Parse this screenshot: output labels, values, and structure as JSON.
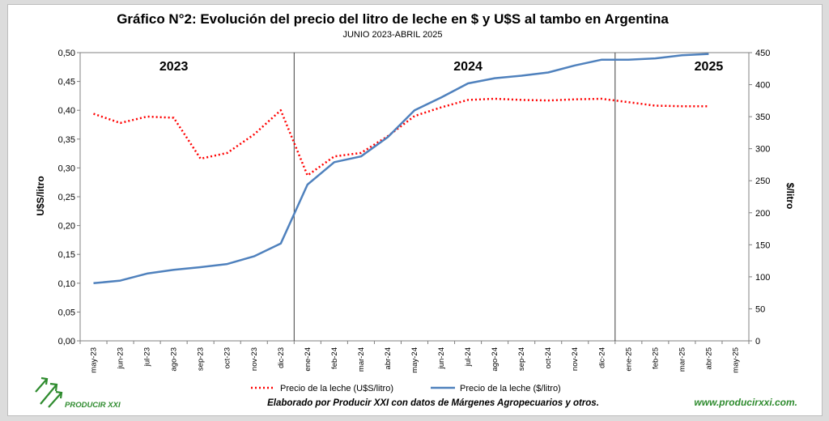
{
  "chart_data": {
    "type": "line",
    "title": "Gráfico N°2: Evolución del precio del litro de leche en $ y U$S al tambo en Argentina",
    "subtitle": "JUNIO 2023-ABRIL 2025",
    "categories": [
      "may-23",
      "jun-23",
      "jul-23",
      "ago-23",
      "sep-23",
      "oct-23",
      "nov-23",
      "dic-23",
      "ene-24",
      "feb-24",
      "mar-24",
      "abr-24",
      "may-24",
      "jun-24",
      "jul-24",
      "ago-24",
      "sep-24",
      "oct-24",
      "nov-24",
      "dic-24",
      "ene-25",
      "feb-25",
      "mar-25",
      "abr-25",
      "may-25"
    ],
    "y_left": {
      "label": "U$S/litro",
      "ylim": [
        0,
        0.5
      ],
      "ticks": [
        "0,00",
        "0,05",
        "0,10",
        "0,15",
        "0,20",
        "0,25",
        "0,30",
        "0,35",
        "0,40",
        "0,45",
        "0,50"
      ]
    },
    "y_right": {
      "label": "$/litro",
      "ylim": [
        0,
        450
      ],
      "ticks": [
        "0",
        "50",
        "100",
        "150",
        "200",
        "250",
        "300",
        "350",
        "400",
        "450"
      ]
    },
    "series": [
      {
        "name": "Precio de la leche (U$S/litro)",
        "axis": "left",
        "style": "dotted",
        "color": "#ff0000",
        "values": [
          0.394,
          0.378,
          0.389,
          0.387,
          0.316,
          0.326,
          0.358,
          0.4,
          0.287,
          0.32,
          0.326,
          0.355,
          0.39,
          0.405,
          0.418,
          0.42,
          0.418,
          0.417,
          0.419,
          0.42,
          0.414,
          0.408,
          0.407,
          0.407,
          null
        ]
      },
      {
        "name": "Precio de la leche ($/litro)",
        "axis": "right",
        "style": "solid",
        "color": "#4f81bd",
        "values": [
          90,
          94,
          105,
          111,
          115,
          120,
          132,
          152,
          244,
          279,
          288,
          318,
          360,
          380,
          402,
          410,
          414,
          419,
          430,
          439,
          439,
          441,
          446,
          448,
          null
        ]
      }
    ],
    "year_markers": [
      {
        "label": "2023",
        "at_category": 3
      },
      {
        "label": "2024",
        "at_category": 14
      },
      {
        "label": "2025",
        "at_category": 23
      }
    ],
    "dividers_after_category": [
      7.5,
      19.5
    ],
    "legend_position": "bottom"
  },
  "footer": {
    "credit": "Elaborado por Producir XXI con datos de Márgenes Agropecuarios y otros.",
    "website": "www.producirxxi.com.",
    "logo_text": "PRODUCIR XXI",
    "brand_color": "#2e8b2e"
  }
}
